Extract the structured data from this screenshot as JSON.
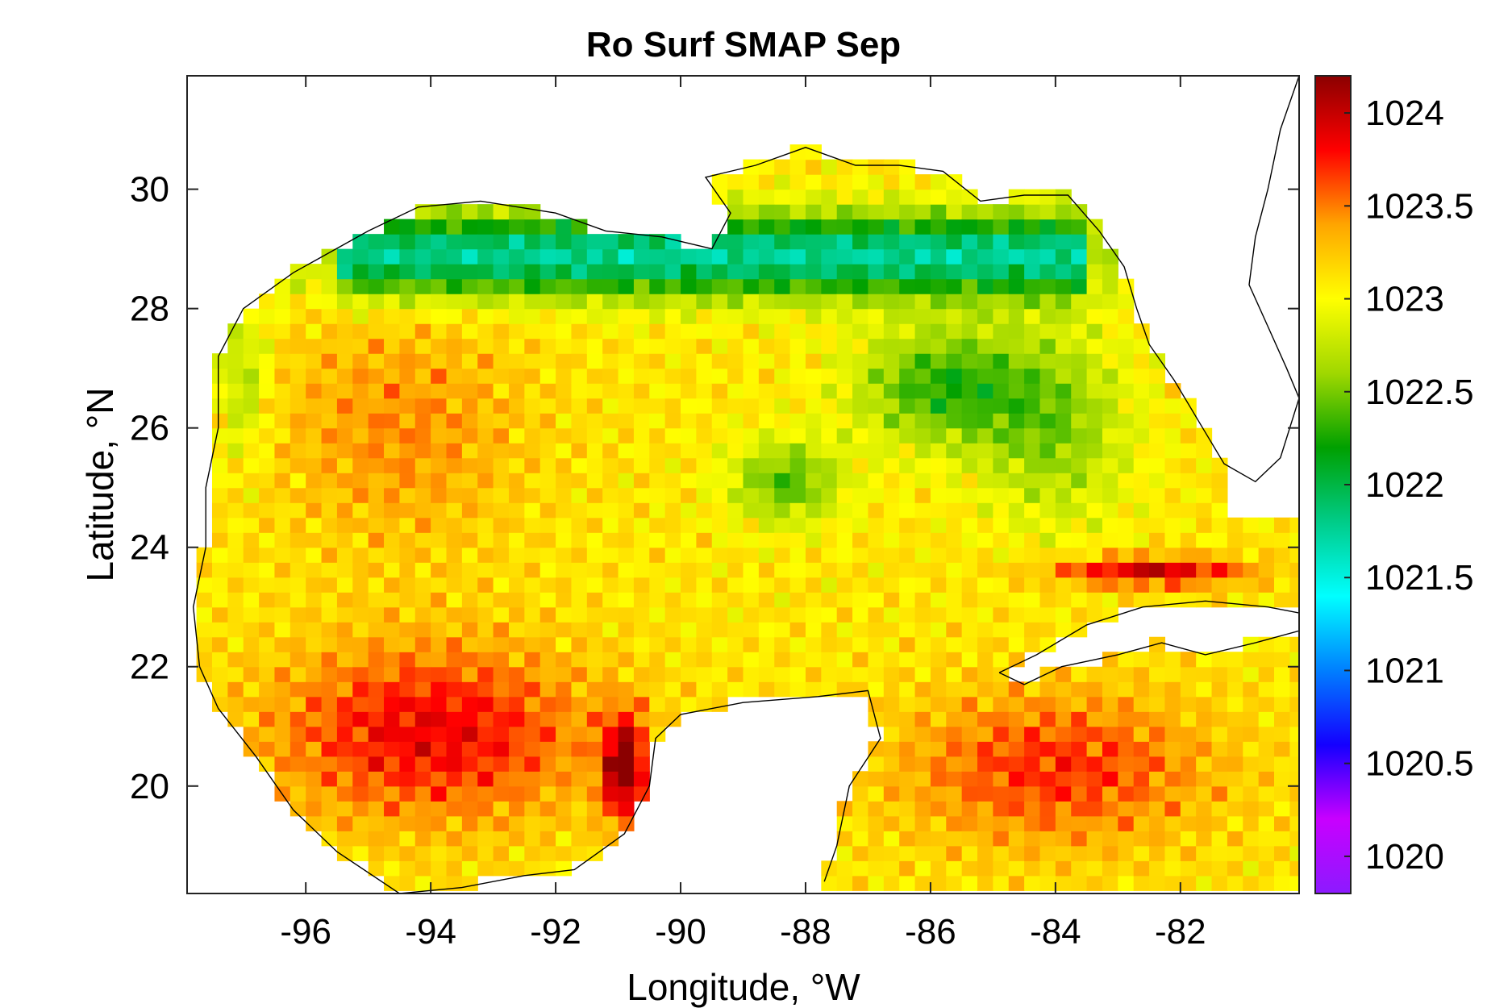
{
  "chart_data": {
    "type": "heatmap",
    "title": "Ro Surf SMAP Sep",
    "xlabel": "Longitude, °W",
    "ylabel": "Latitude, °N",
    "xlim": [
      -97.9,
      -80.1
    ],
    "ylim": [
      18.2,
      31.9
    ],
    "x_ticks": [
      -96,
      -94,
      -92,
      -90,
      -88,
      -86,
      -84,
      -82
    ],
    "y_ticks": [
      20,
      22,
      24,
      26,
      28,
      30
    ],
    "colorbar": {
      "min": 1019.8,
      "max": 1024.2,
      "ticks": [
        "1020",
        "1020.5",
        "1021",
        "1021.5",
        "1022",
        "1022.5",
        "1023",
        "1023.5",
        "1024"
      ],
      "tick_values": [
        1020,
        1020.5,
        1021,
        1021.5,
        1022,
        1022.5,
        1023,
        1023.5,
        1024
      ],
      "colormap": [
        "#8c1aff",
        "#c800ff",
        "#1400ff",
        "#007fff",
        "#00ffff",
        "#00cc88",
        "#00a000",
        "#a0d800",
        "#ffff00",
        "#ffa500",
        "#ff0000",
        "#8b0000"
      ]
    },
    "land_color": "#ffffff",
    "coastline_color": "#000000"
  }
}
